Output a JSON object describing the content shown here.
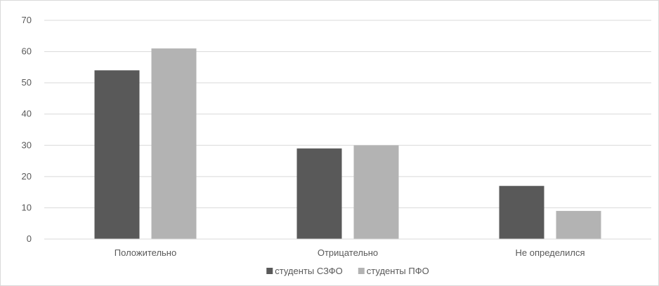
{
  "chart_data": {
    "type": "bar",
    "categories": [
      "Положительно",
      "Отрицательно",
      "Не определился"
    ],
    "series": [
      {
        "name": "студенты СЗФО",
        "values": [
          54,
          29,
          17
        ],
        "color": "#595959"
      },
      {
        "name": "студенты ПФО",
        "values": [
          61,
          30,
          9
        ],
        "color": "#b3b3b3"
      }
    ],
    "y_ticks": [
      "0",
      "10",
      "20",
      "30",
      "40",
      "50",
      "60",
      "70"
    ],
    "ylim": [
      0,
      70
    ],
    "grid": true,
    "legend_position": "bottom",
    "title": "",
    "xlabel": "",
    "ylabel": ""
  }
}
